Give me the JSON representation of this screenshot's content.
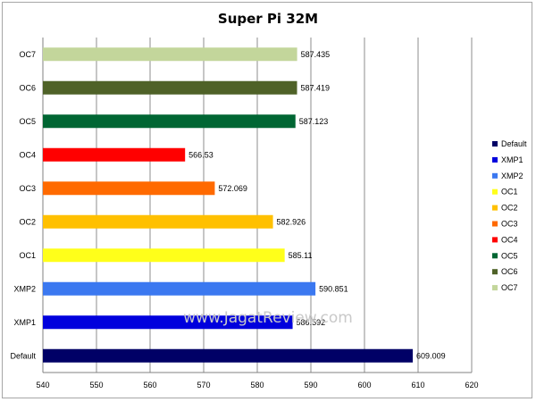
{
  "chart_data": {
    "type": "bar",
    "orientation": "horizontal",
    "title": "Super Pi 32M",
    "xlabel": "",
    "ylabel": "",
    "xlim": [
      540,
      620
    ],
    "xticks": [
      540,
      550,
      560,
      570,
      580,
      590,
      600,
      610,
      620
    ],
    "grid": true,
    "legend_position": "right",
    "categories": [
      "Default",
      "XMP1",
      "XMP2",
      "OC1",
      "OC2",
      "OC3",
      "OC4",
      "OC5",
      "OC6",
      "OC7"
    ],
    "values": [
      609.009,
      586.592,
      590.851,
      585.11,
      582.926,
      572.069,
      566.53,
      587.123,
      587.419,
      587.435
    ],
    "value_labels": [
      "609.009",
      "586.592",
      "590.851",
      "585.11",
      "582.926",
      "572.069",
      "566.53",
      "587.123",
      "587.419",
      "587.435"
    ],
    "colors": [
      "#000066",
      "#0000dd",
      "#3b78f0",
      "#ffff1a",
      "#ffc000",
      "#ff6a00",
      "#ff0000",
      "#006633",
      "#4f6228",
      "#c3d69b"
    ],
    "legend": [
      "Default",
      "XMP1",
      "XMP2",
      "OC1",
      "OC2",
      "OC3",
      "OC4",
      "OC5",
      "OC6",
      "OC7"
    ]
  },
  "watermark": "www.JagatReview.com"
}
